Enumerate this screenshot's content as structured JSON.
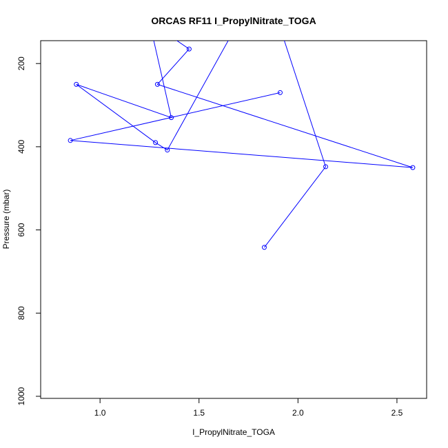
{
  "chart_data": {
    "type": "line",
    "title": "ORCAS RF11 I_PropylNitrate_TOGA",
    "xlabel": "I_PropylNitrate_TOGA",
    "ylabel": "Pressure (mbar)",
    "xlim": [
      0.7,
      2.65
    ],
    "ylim": [
      1005,
      145
    ],
    "y_reversed": true,
    "x_ticks": [
      1.0,
      1.5,
      2.0,
      2.5
    ],
    "x_tick_labels": [
      "1.0",
      "1.5",
      "2.0",
      "2.5"
    ],
    "y_ticks": [
      200,
      400,
      600,
      800,
      1000
    ],
    "y_tick_labels": [
      "200",
      "400",
      "600",
      "800",
      "1000"
    ],
    "series": [
      {
        "color": "#0000ff",
        "marker": "open-circle",
        "points": [
          {
            "x": 1.83,
            "y": 642
          },
          {
            "x": 2.14,
            "y": 448
          },
          {
            "x": 1.9,
            "y": 100
          },
          {
            "x": 1.7,
            "y": 100
          },
          {
            "x": 1.34,
            "y": 408
          },
          {
            "x": 1.28,
            "y": 390
          },
          {
            "x": 0.88,
            "y": 250
          },
          {
            "x": 1.36,
            "y": 330
          },
          {
            "x": 1.25,
            "y": 100
          },
          {
            "x": 1.25,
            "y": 100
          },
          {
            "x": 1.45,
            "y": 165
          },
          {
            "x": 1.29,
            "y": 250
          },
          {
            "x": 2.58,
            "y": 450
          },
          {
            "x": 0.85,
            "y": 385
          },
          {
            "x": 1.91,
            "y": 270
          }
        ],
        "markers_visible": [
          true,
          true,
          false,
          false,
          true,
          true,
          true,
          true,
          false,
          false,
          true,
          true,
          true,
          true,
          true
        ]
      }
    ],
    "grid": false,
    "legend": "none"
  }
}
